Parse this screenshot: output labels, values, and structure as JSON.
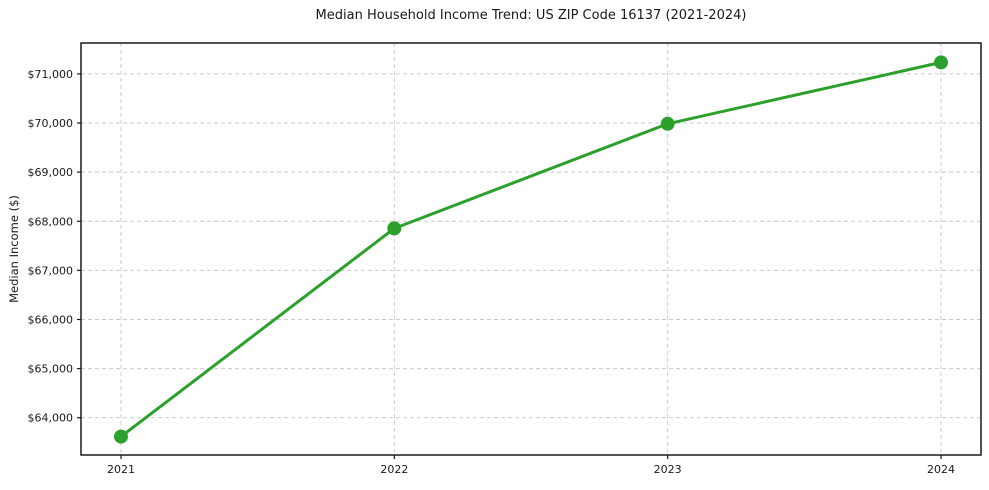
{
  "chart_data": {
    "type": "line",
    "title": "Median Household Income Trend: US ZIP Code 16137 (2021-2024)",
    "xlabel": "",
    "ylabel": "Median Income ($)",
    "categories": [
      "2021",
      "2022",
      "2023",
      "2024"
    ],
    "series": [
      {
        "name": "Median Household Income",
        "values": [
          63615,
          67855,
          69985,
          71235
        ]
      }
    ],
    "ylim": [
      63240,
      71630
    ],
    "yticks": [
      64000,
      65000,
      66000,
      67000,
      68000,
      69000,
      70000,
      71000
    ],
    "ytick_labels": [
      "$64,000",
      "$65,000",
      "$66,000",
      "$67,000",
      "$68,000",
      "$69,000",
      "$70,000",
      "$71,000"
    ],
    "xtick_labels": [
      "2021",
      "2022",
      "2023",
      "2024"
    ],
    "grid": true,
    "grid_style": "dashed",
    "legend": "none",
    "line_color": "#2ca02c",
    "grid_color": "#cbcbcb",
    "frame_color": "#1a1a1a",
    "marker": "circle",
    "marker_radius": 7
  }
}
